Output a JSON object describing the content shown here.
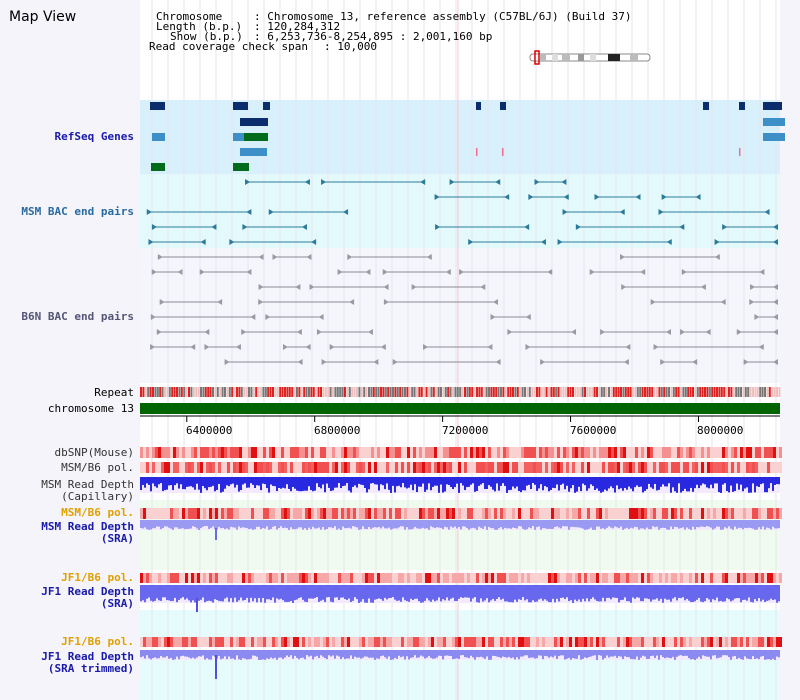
{
  "page": {
    "title": "Map View"
  },
  "info": {
    "chromosome_key": "Chromosome",
    "chromosome_value": ": Chromosome 13, reference assembly (C57BL/6J) (Build 37)",
    "length_key": "Length (b.p.)",
    "length_value": ": 120,284,312",
    "show_key": "Show (b.p.)",
    "show_value": ": 6,253,736-8,254,895 : 2,001,160 bp",
    "coverage_key": "Read coverage check span",
    "coverage_value": ": 10,000"
  },
  "tracks": {
    "refseq": "RefSeq Genes",
    "msm_bac": "MSM BAC end pairs",
    "b6n_bac": "B6N BAC end pairs",
    "repeat": "Repeat",
    "chromosome": "chromosome 13",
    "dbsnp": "dbSNP(Mouse)",
    "msm_b6_pol_1": "MSM/B6 pol.",
    "msm_depth_cap_1": "MSM Read Depth",
    "msm_depth_cap_2": "(Capillary)",
    "msm_b6_pol_2": "MSM/B6 pol.",
    "msm_depth_sra_1": "MSM Read Depth",
    "msm_depth_sra_2": "(SRA)",
    "jf1_b6_pol_1": "JF1/B6 pol.",
    "jf1_depth_sra_1": "JF1 Read Depth",
    "jf1_depth_sra_2": "(SRA)",
    "jf1_b6_pol_2": "JF1/B6 pol.",
    "jf1_depth_trim_1": "JF1 Read Depth",
    "jf1_depth_trim_2": "(SRA trimmed)"
  },
  "axis": {
    "ticks": [
      {
        "pos": 6400000,
        "label": "6400000"
      },
      {
        "pos": 6800000,
        "label": "6800000"
      },
      {
        "pos": 7200000,
        "label": "7200000"
      },
      {
        "pos": 7600000,
        "label": "7600000"
      },
      {
        "pos": 8000000,
        "label": "8000000"
      }
    ],
    "range": [
      6253736,
      8254895
    ]
  },
  "colors": {
    "refseq_label": "#1a1aaa",
    "bac_label": "#2a6aa0",
    "b6n_label": "#555577",
    "gold_label": "#e0a000",
    "depth_label": "#1a1aaa",
    "refseq_bg": "#d8f0fb",
    "msm_bg": "#e3f9fb",
    "chromosome_bar": "#006400",
    "depth_bar": "#3c3ce6",
    "pol_hot": "#e52020"
  }
}
